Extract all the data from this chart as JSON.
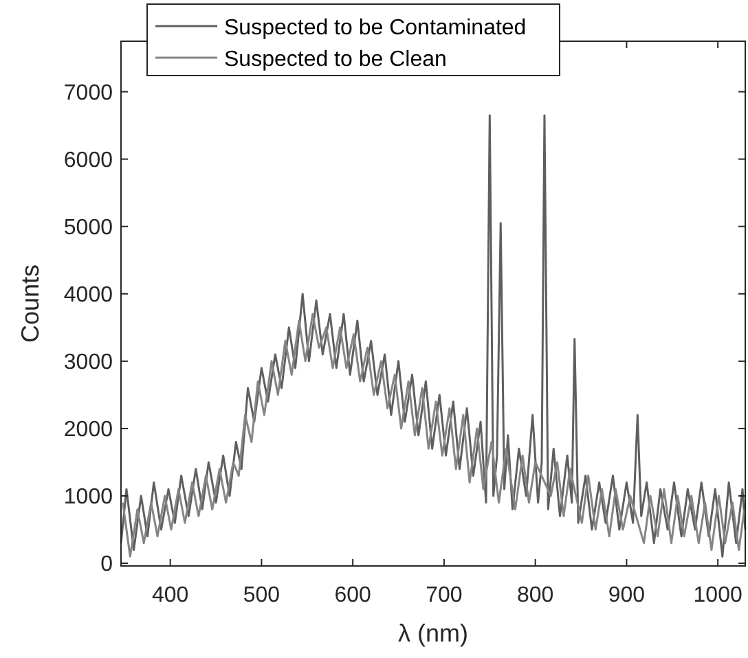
{
  "chart_data": {
    "type": "line",
    "xlabel": "λ (nm)",
    "ylabel": "Counts",
    "xlim": [
      346,
      1030
    ],
    "ylim": [
      -40,
      7750
    ],
    "xticks": [
      400,
      500,
      600,
      700,
      800,
      900,
      1000
    ],
    "yticks": [
      0,
      1000,
      2000,
      3000,
      4000,
      5000,
      6000,
      7000
    ],
    "legend": "top",
    "grid": false,
    "line_style": "solid",
    "marker": "none",
    "series": [
      {
        "name": "Suspected to be Contaminated",
        "color": "#5f5f5f",
        "x": [
          346,
          352,
          360,
          368,
          375,
          382,
          390,
          398,
          405,
          412,
          420,
          428,
          435,
          442,
          450,
          458,
          465,
          472,
          478,
          485,
          492,
          500,
          507,
          515,
          522,
          530,
          537,
          545,
          552,
          560,
          567,
          575,
          582,
          590,
          597,
          605,
          612,
          620,
          627,
          635,
          642,
          650,
          657,
          665,
          672,
          680,
          687,
          695,
          702,
          710,
          717,
          725,
          732,
          740,
          746,
          750,
          754,
          758,
          762,
          766,
          770,
          775,
          782,
          790,
          797,
          803,
          807,
          810,
          814,
          820,
          827,
          835,
          840,
          843,
          847,
          855,
          862,
          870,
          877,
          885,
          892,
          900,
          907,
          912,
          916,
          922,
          930,
          937,
          945,
          952,
          960,
          967,
          975,
          982,
          990,
          997,
          1005,
          1012,
          1020,
          1027,
          1030
        ],
        "values": [
          300,
          1100,
          200,
          1000,
          400,
          1200,
          500,
          1100,
          600,
          1300,
          700,
          1400,
          800,
          1500,
          900,
          1600,
          1000,
          1800,
          1400,
          2600,
          2100,
          2900,
          2400,
          3100,
          2600,
          3500,
          2900,
          4000,
          3000,
          3900,
          3100,
          3700,
          2900,
          3700,
          2800,
          3600,
          2700,
          3300,
          2500,
          3100,
          2200,
          3000,
          2100,
          2800,
          1900,
          2700,
          1700,
          2500,
          1600,
          2400,
          1400,
          2300,
          1300,
          2100,
          900,
          6650,
          1000,
          1600,
          5050,
          1100,
          1900,
          800,
          1700,
          1000,
          2200,
          900,
          1500,
          6650,
          800,
          1700,
          700,
          1600,
          900,
          3330,
          600,
          1300,
          500,
          1200,
          600,
          1300,
          500,
          1200,
          600,
          2200,
          700,
          1200,
          300,
          1100,
          500,
          1200,
          400,
          1100,
          500,
          1200,
          400,
          1100,
          100,
          1200,
          300,
          1100,
          500
        ]
      },
      {
        "name": "Suspected to be Clean",
        "color": "#858585",
        "x": [
          348,
          356,
          364,
          371,
          379,
          386,
          394,
          401,
          409,
          416,
          424,
          431,
          439,
          446,
          454,
          461,
          469,
          475,
          482,
          489,
          496,
          503,
          511,
          518,
          526,
          533,
          541,
          548,
          556,
          563,
          571,
          578,
          586,
          593,
          601,
          608,
          616,
          623,
          631,
          638,
          646,
          653,
          661,
          668,
          676,
          683,
          691,
          698,
          706,
          713,
          721,
          728,
          736,
          743,
          752,
          760,
          768,
          778,
          786,
          793,
          800,
          817,
          824,
          831,
          838,
          851,
          858,
          866,
          873,
          881,
          888,
          896,
          904,
          919,
          926,
          934,
          941,
          949,
          956,
          963,
          971,
          979,
          986,
          993,
          1001,
          1008,
          1016,
          1023,
          1029
        ],
        "values": [
          900,
          100,
          800,
          300,
          900,
          400,
          1000,
          500,
          1100,
          600,
          1200,
          700,
          1300,
          800,
          1400,
          900,
          1500,
          1300,
          2200,
          1800,
          2700,
          2200,
          3000,
          2500,
          3300,
          2800,
          3600,
          3000,
          3700,
          3200,
          3500,
          2900,
          3500,
          2900,
          3400,
          2700,
          3200,
          2500,
          3000,
          2300,
          2800,
          2000,
          2700,
          1900,
          2600,
          1700,
          2400,
          1600,
          2300,
          1400,
          2200,
          1200,
          2000,
          1100,
          1800,
          900,
          1700,
          800,
          1600,
          900,
          1500,
          1000,
          1500,
          700,
          1400,
          600,
          1300,
          500,
          1100,
          400,
          1100,
          500,
          1000,
          300,
          1000,
          400,
          1100,
          300,
          1000,
          400,
          1000,
          300,
          900,
          200,
          1000,
          300,
          900,
          200,
          800
        ]
      }
    ]
  }
}
